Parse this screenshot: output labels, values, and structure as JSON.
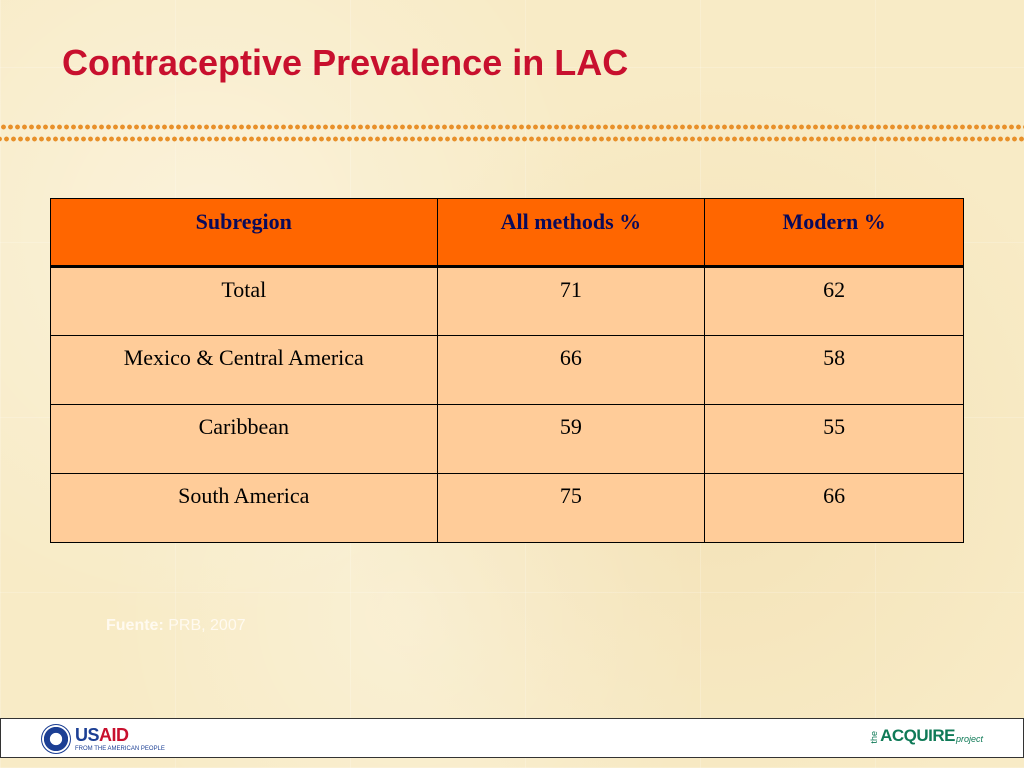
{
  "slide": {
    "title": "Contraceptive Prevalence in LAC"
  },
  "table": {
    "headers": [
      "Subregion",
      "All methods %",
      "Modern %"
    ],
    "rows": [
      {
        "subregion": "Total",
        "all_methods": "71",
        "modern": "62"
      },
      {
        "subregion": "Mexico & Central America",
        "all_methods": "66",
        "modern": "58"
      },
      {
        "subregion": "Caribbean",
        "all_methods": "59",
        "modern": "55"
      },
      {
        "subregion": "South America",
        "all_methods": "75",
        "modern": "66"
      }
    ]
  },
  "source": {
    "label": "Fuente:",
    "text": "PRB, 2007"
  },
  "footer": {
    "usaid_logo": {
      "word_us": "US",
      "word_aid": "AID",
      "tagline": "FROM THE AMERICAN PEOPLE"
    },
    "acquire_logo": {
      "the": "the",
      "name": "ACQUIRE",
      "suffix": "project"
    }
  },
  "colors": {
    "title": "#c8102e",
    "header_fill": "#ff6600",
    "header_text": "#0a0a5a",
    "cell_fill": "#ffcc99",
    "dot_rule": "#e8902a",
    "background": "#f8ebc6"
  }
}
